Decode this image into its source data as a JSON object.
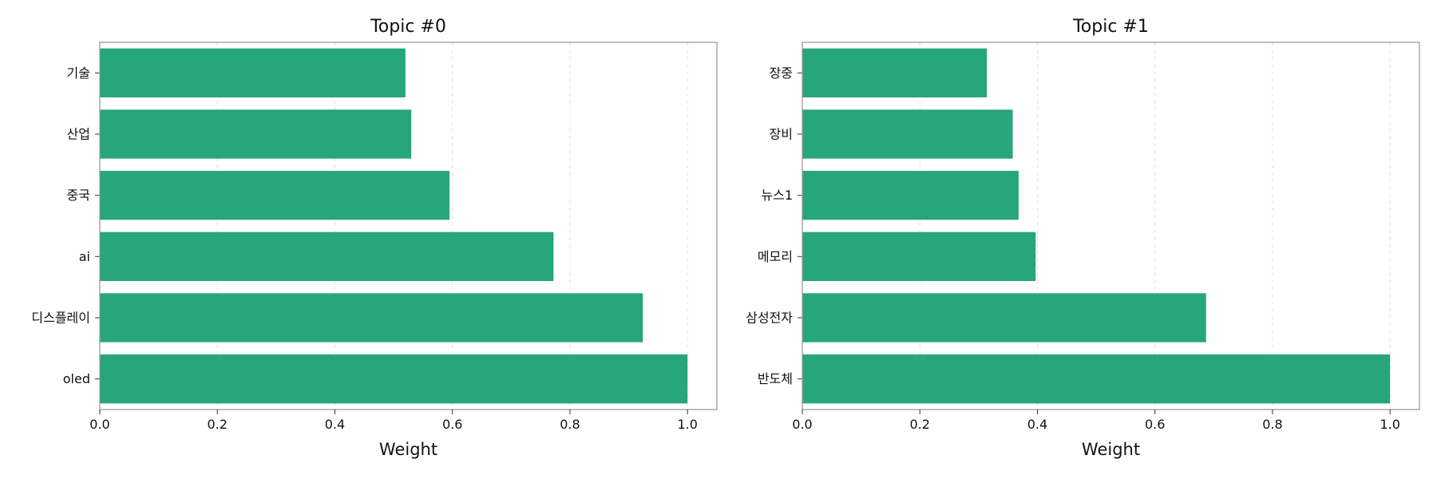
{
  "colors": {
    "bar": "#26a67a",
    "frame": "#9a9a9a",
    "grid": "#e3e3e3"
  },
  "chart_data": [
    {
      "type": "bar",
      "orientation": "horizontal",
      "title": "Topic #0",
      "xlabel": "Weight",
      "ylabel": "",
      "xlim": [
        0,
        1.05
      ],
      "xticks": [
        "0.0",
        "0.2",
        "0.4",
        "0.6",
        "0.8",
        "1.0"
      ],
      "grid": "x, dashed",
      "categories": [
        "기술",
        "산업",
        "중국",
        "ai",
        "디스플레이",
        "oled"
      ],
      "values": [
        0.52,
        0.53,
        0.595,
        0.772,
        0.924,
        1.0
      ]
    },
    {
      "type": "bar",
      "orientation": "horizontal",
      "title": "Topic #1",
      "xlabel": "Weight",
      "ylabel": "",
      "xlim": [
        0,
        1.05
      ],
      "xticks": [
        "0.0",
        "0.2",
        "0.4",
        "0.6",
        "0.8",
        "1.0"
      ],
      "grid": "x, dashed",
      "categories": [
        "장중",
        "장비",
        "뉴스1",
        "메모리",
        "삼성전자",
        "반도체"
      ],
      "values": [
        0.314,
        0.358,
        0.368,
        0.397,
        0.687,
        1.0
      ]
    }
  ]
}
